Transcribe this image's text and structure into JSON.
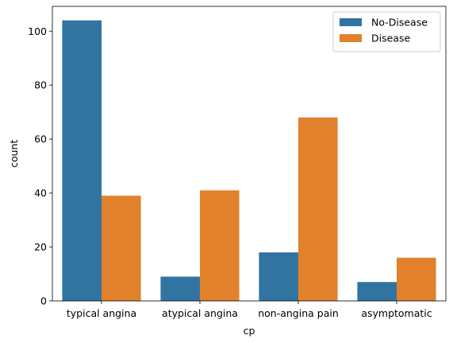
{
  "chart_data": {
    "type": "bar",
    "title": "",
    "xlabel": "cp",
    "ylabel": "count",
    "categories": [
      "typical angina",
      "atypical angina",
      "non-angina pain",
      "asymptomatic"
    ],
    "series": [
      {
        "name": "No-Disease",
        "color": "#3274a1",
        "values": [
          104,
          9,
          18,
          7
        ]
      },
      {
        "name": "Disease",
        "color": "#e1812c",
        "values": [
          39,
          41,
          68,
          16
        ]
      }
    ],
    "ylim": [
      0,
      109.2
    ],
    "yticks": [
      0,
      20,
      40,
      60,
      80,
      100
    ],
    "legend_position": "top-right",
    "grid": false
  }
}
